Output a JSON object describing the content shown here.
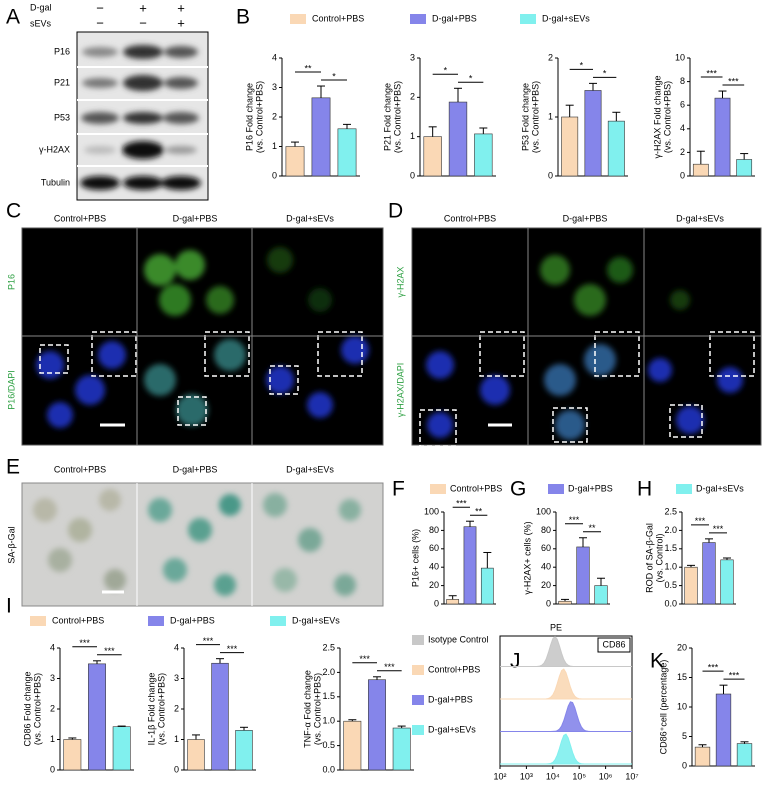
{
  "panel_labels": [
    "A",
    "B",
    "C",
    "D",
    "E",
    "F",
    "G",
    "H",
    "I",
    "J",
    "K"
  ],
  "groups": {
    "names": [
      "Control+PBS",
      "D-gal+PBS",
      "D-gal+sEVs"
    ],
    "colors": [
      "#fad8b5",
      "#8585ea",
      "#80f0ee"
    ]
  },
  "blot": {
    "treatments": [
      {
        "name": "D-gal",
        "signs": [
          "−",
          "+",
          "+"
        ]
      },
      {
        "name": "sEVs",
        "signs": [
          "−",
          "−",
          "+"
        ]
      }
    ],
    "proteins": [
      "P16",
      "P21",
      "P53",
      "γ-H2AX",
      "Tubulin"
    ]
  },
  "images": {
    "C": {
      "columns": [
        "Control+PBS",
        "D-gal+PBS",
        "D-gal+sEVs"
      ],
      "rows": [
        "P16",
        "P16/DAPI"
      ]
    },
    "D": {
      "columns": [
        "Control+PBS",
        "D-gal+PBS",
        "D-gal+sEVs"
      ],
      "rows": [
        "γ-H2AX",
        "γ-H2AX/DAPI"
      ]
    },
    "E": {
      "columns": [
        "Control+PBS",
        "D-gal+PBS",
        "D-gal+sEVs"
      ],
      "rows": [
        "SA-β-Gal"
      ]
    }
  },
  "chart_data": [
    {
      "type": "bar",
      "ylabel": [
        "P16 Fold change",
        "(vs. Control+PBS)"
      ],
      "values": [
        1.0,
        2.65,
        1.6
      ],
      "errors": [
        0.15,
        0.4,
        0.15
      ],
      "ylim": [
        0,
        4
      ],
      "yticks": [
        0,
        1,
        2,
        3,
        4
      ],
      "significance": [
        "**",
        "*"
      ]
    },
    {
      "type": "bar",
      "ylabel": [
        "P21 Fold change",
        "(vs. Control+PBS)"
      ],
      "values": [
        1.0,
        1.88,
        1.07
      ],
      "errors": [
        0.25,
        0.35,
        0.15
      ],
      "ylim": [
        0,
        3
      ],
      "yticks": [
        0,
        1,
        2,
        3
      ],
      "significance": [
        "*",
        "*"
      ]
    },
    {
      "type": "bar",
      "ylabel": [
        "P53 Fold change",
        "(vs. Control+PBS)"
      ],
      "values": [
        1.0,
        1.45,
        0.93
      ],
      "errors": [
        0.2,
        0.12,
        0.15
      ],
      "ylim": [
        0,
        2
      ],
      "yticks": [
        0,
        1,
        2
      ],
      "significance": [
        "*",
        "*"
      ]
    },
    {
      "type": "bar",
      "ylabel": [
        "γ-H2AX Fold change",
        "(vs. Control+PBS)"
      ],
      "values": [
        1.0,
        6.6,
        1.4
      ],
      "errors": [
        1.1,
        0.6,
        0.5
      ],
      "ylim": [
        0,
        10
      ],
      "yticks": [
        0,
        2,
        4,
        6,
        8,
        10
      ],
      "significance": [
        "***",
        "***"
      ]
    },
    {
      "type": "bar",
      "ylabel": [
        "P16+ cells (%)"
      ],
      "values": [
        5,
        84,
        39
      ],
      "errors": [
        4,
        6,
        17
      ],
      "ylim": [
        0,
        100
      ],
      "yticks": [
        0,
        20,
        40,
        60,
        80,
        100
      ],
      "significance": [
        "***",
        "**"
      ]
    },
    {
      "type": "bar",
      "ylabel": [
        "γ-H2AX+ cells (%)"
      ],
      "values": [
        3,
        62,
        20
      ],
      "errors": [
        2,
        10,
        8
      ],
      "ylim": [
        0,
        100
      ],
      "yticks": [
        0,
        20,
        40,
        60,
        80,
        100
      ],
      "significance": [
        "***",
        "**"
      ]
    },
    {
      "type": "bar",
      "ylabel": [
        "ROD of SA-β-Gal",
        "(vs. Control)"
      ],
      "values": [
        1.0,
        1.67,
        1.2
      ],
      "errors": [
        0.05,
        0.1,
        0.05
      ],
      "ylim": [
        0,
        2.5
      ],
      "yticks": [
        {
          "value": 0,
          "label": "0.0"
        },
        0.5,
        {
          "value": 1,
          "label": "1.0"
        },
        1.5,
        {
          "value": 2,
          "label": "2.0"
        },
        2.5
      ],
      "significance": [
        "***",
        "***"
      ]
    },
    {
      "type": "bar",
      "ylabel": [
        "CD86 Fold change",
        "(vs. Control+PBS)"
      ],
      "values": [
        1.0,
        3.48,
        1.42
      ],
      "errors": [
        0.05,
        0.1,
        0.02
      ],
      "ylim": [
        0,
        4
      ],
      "yticks": [
        0,
        1,
        2,
        3,
        4
      ],
      "significance": [
        "***",
        "***"
      ]
    },
    {
      "type": "bar",
      "ylabel": [
        "IL-1β Fold change",
        "(vs. Control+PBS)"
      ],
      "values": [
        1.0,
        3.5,
        1.3
      ],
      "errors": [
        0.15,
        0.15,
        0.1
      ],
      "ylim": [
        0,
        4
      ],
      "yticks": [
        0,
        1,
        2,
        3,
        4
      ],
      "significance": [
        "***",
        "***"
      ]
    },
    {
      "type": "bar",
      "ylabel": [
        "TNF-α Fold change",
        "(vs. Control+PBS)"
      ],
      "values": [
        1.0,
        1.85,
        0.86
      ],
      "errors": [
        0.03,
        0.06,
        0.04
      ],
      "ylim": [
        0,
        2.5
      ],
      "yticks": [
        {
          "value": 0,
          "label": "0.0"
        },
        0.5,
        {
          "value": 1,
          "label": "1.0"
        },
        1.5,
        {
          "value": 2,
          "label": "2.0"
        },
        2.5
      ],
      "significance": [
        "***",
        "***"
      ]
    },
    {
      "type": "density",
      "title": "PE",
      "marker": "CD86",
      "log_x": true,
      "xlim": [
        100,
        10000000
      ],
      "xticks": [
        {
          "value": 100,
          "label": "10²"
        },
        {
          "value": 1000,
          "label": "10³"
        },
        {
          "value": 10000,
          "label": "10⁴"
        },
        {
          "value": 100000,
          "label": "10⁵"
        },
        {
          "value": 1000000,
          "label": "10⁶"
        },
        {
          "value": 10000000,
          "label": "10⁷"
        }
      ],
      "series": [
        {
          "name": "Isotype Control",
          "color": "#c8c8c8",
          "peak": 12000
        },
        {
          "name": "Control+PBS",
          "color": "#fad8b5",
          "peak": 25000
        },
        {
          "name": "D-gal+PBS",
          "color": "#8585ea",
          "peak": 50000
        },
        {
          "name": "D-gal+sEVs",
          "color": "#80f0ee",
          "peak": 30000
        }
      ]
    },
    {
      "type": "bar",
      "ylabel": [
        "CD86⁺cell (percentage)"
      ],
      "values": [
        3.2,
        12.2,
        3.8
      ],
      "errors": [
        0.4,
        1.5,
        0.3
      ],
      "ylim": [
        0,
        20
      ],
      "yticks": [
        0,
        5,
        10,
        15,
        20
      ],
      "significance": [
        "***",
        "***"
      ]
    }
  ]
}
